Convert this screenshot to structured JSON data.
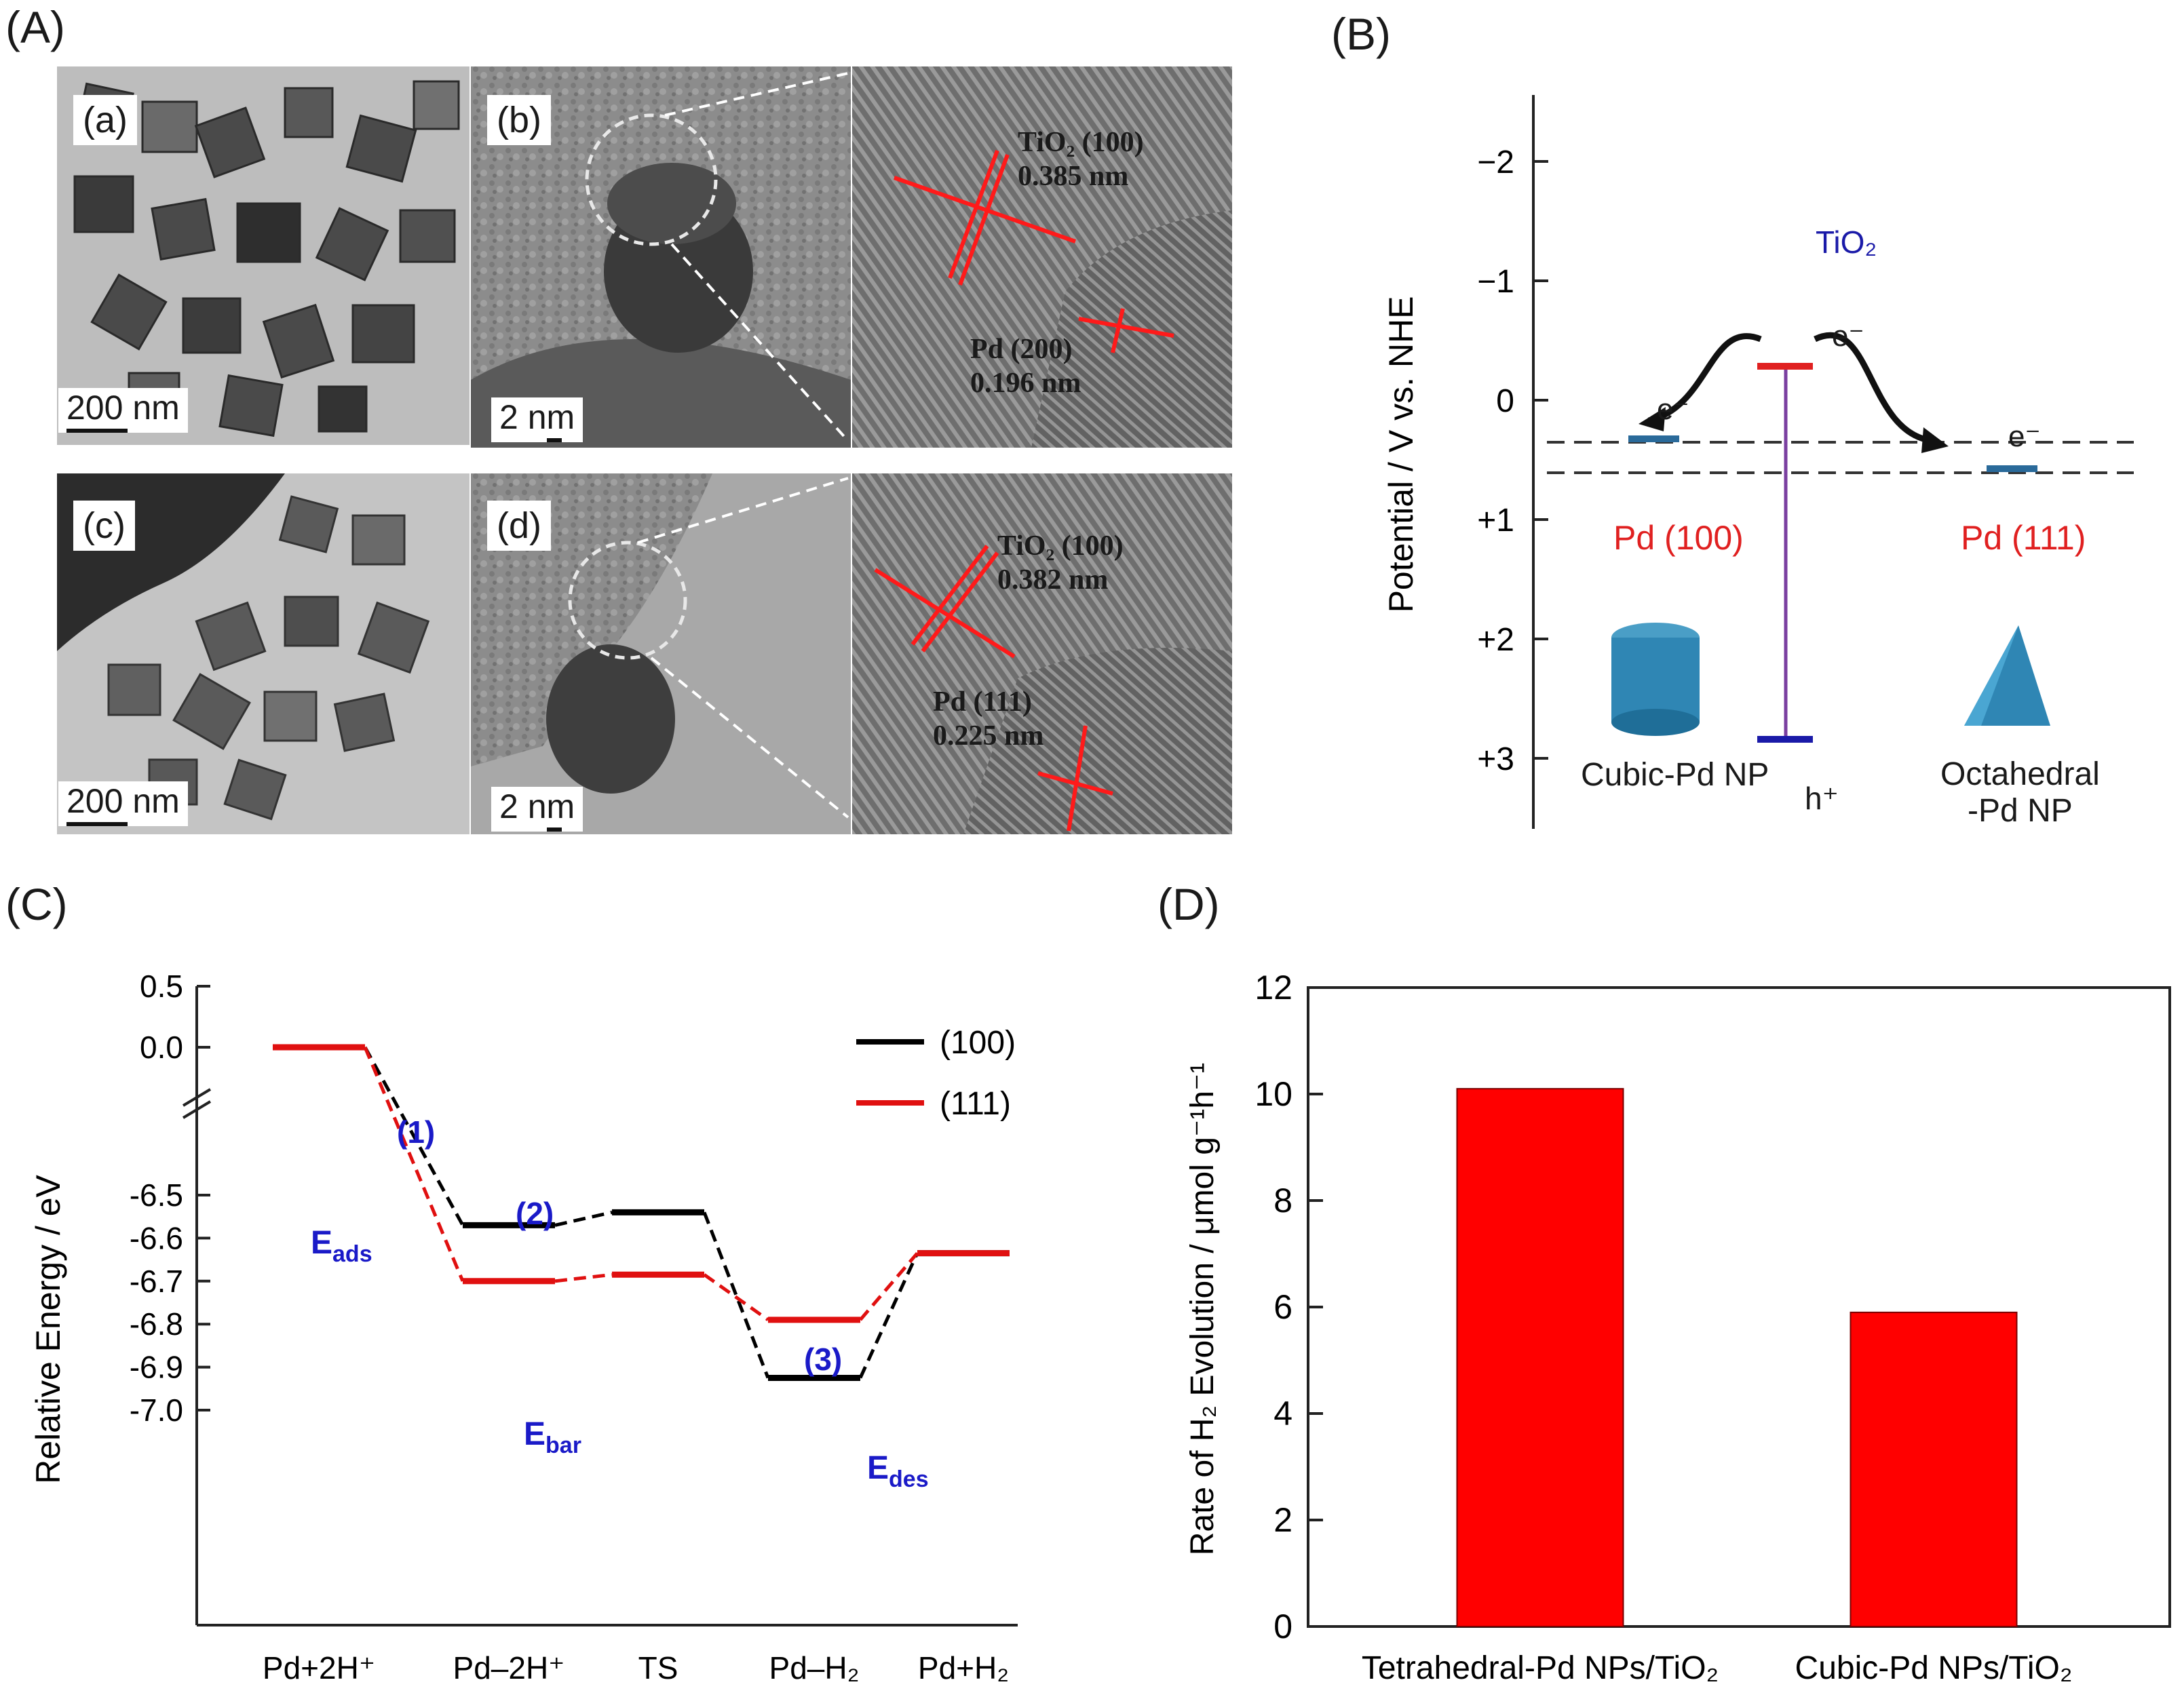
{
  "panel_labels": {
    "A": "(A)",
    "B": "(B)",
    "C": "(C)",
    "D": "(D)"
  },
  "panel_A": {
    "images": [
      {
        "sub": "(a)",
        "scale": "200 nm"
      },
      {
        "sub": "(b)",
        "scale": "2 nm"
      },
      {
        "sub": "(c)",
        "scale": "200 nm"
      },
      {
        "sub": "(d)",
        "scale": "2 nm"
      }
    ],
    "lattice_top": {
      "tio2": "TiO₂ (100)",
      "tio2_d": "0.385 nm",
      "pd": "Pd (200)",
      "pd_d": "0.196 nm"
    },
    "lattice_bottom": {
      "tio2": "TiO₂ (100)",
      "tio2_d": "0.382 nm",
      "pd": "Pd (111)",
      "pd_d": "0.225 nm"
    }
  },
  "panel_B": {
    "ylabel": "Potential / V vs. NHE",
    "ticks": [
      "−2",
      "−1",
      "0",
      "+1",
      "+2",
      "+3"
    ],
    "tio2": "TiO₂",
    "electron": "e⁻",
    "hole": "h⁺",
    "pd100": "Pd (100)",
    "pd111": "Pd (111)",
    "cubic": "Cubic-Pd NP",
    "octa_line1": "Octahedral",
    "octa_line2": "-Pd NP",
    "colors": {
      "tio2": "#1a1aa8",
      "pd": "#e02020",
      "band": "#7a3fa0",
      "level": "#2a6a9a"
    }
  },
  "chart_data": [
    {
      "type": "line",
      "title": "",
      "xlabel": "",
      "ylabel": "Relative Energy / eV",
      "categories": [
        "Pd+2H⁺",
        "Pd–2H⁺",
        "TS",
        "Pd–H₂",
        "Pd+H₂"
      ],
      "yticks": [
        "0.5",
        "0.0",
        "-6.5",
        "-6.6",
        "-6.7",
        "-6.8",
        "-6.9",
        "-7.0"
      ],
      "series": [
        {
          "name": "(100)",
          "color": "#000000",
          "values": [
            0.0,
            -6.57,
            -6.54,
            -6.925,
            -6.635
          ]
        },
        {
          "name": "(111)",
          "color": "#e01010",
          "values": [
            0.0,
            -6.7,
            -6.685,
            -6.79,
            -6.635
          ]
        }
      ],
      "annotations": {
        "step1": "(1)",
        "step2": "(2)",
        "step3": "(3)",
        "eads": "E",
        "eads_sub": "ads",
        "ebar": "E",
        "ebar_sub": "bar",
        "edes": "E",
        "edes_sub": "des"
      },
      "axis_break": true,
      "legend": "top-right"
    },
    {
      "type": "bar",
      "title": "",
      "xlabel": "",
      "ylabel": "Rate of H₂ Evolution / μmol g⁻¹h⁻¹",
      "categories": [
        "Tetrahedral-Pd NPs/TiO₂",
        "Cubic-Pd NPs/TiO₂"
      ],
      "values": [
        10.1,
        5.9
      ],
      "ylim": [
        0,
        12
      ],
      "yticks": [
        "0",
        "2",
        "4",
        "6",
        "8",
        "10",
        "12"
      ],
      "color": "#ff0000"
    }
  ]
}
